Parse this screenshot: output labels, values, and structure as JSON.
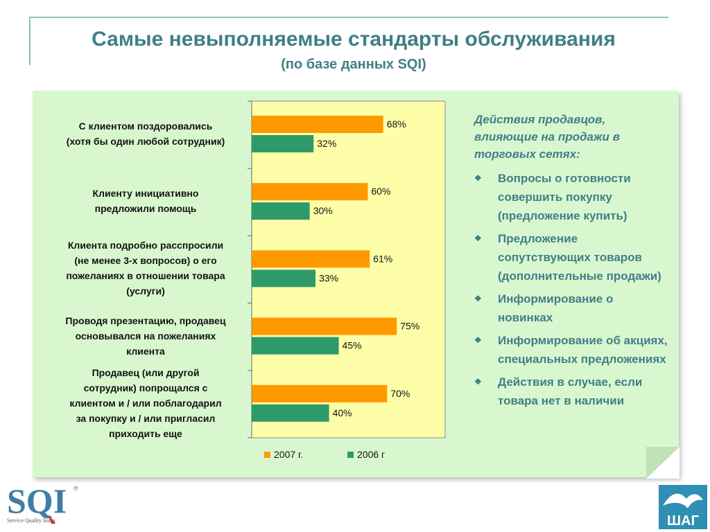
{
  "title": "Самые невыполняемые стандарты обслуживания",
  "subtitle": "(по базе данных SQI)",
  "chart_data": {
    "type": "bar",
    "orientation": "horizontal",
    "categories": [
      [
        "С клиентом поздоровались",
        "(хотя бы один любой сотрудник)"
      ],
      [
        "Клиенту инициативно",
        "предложили помощь"
      ],
      [
        "Клиента подробно расспросили",
        "(не менее 3-х вопросов) о его",
        "пожеланиях в отношении товара",
        "(услуги)"
      ],
      [
        "Проводя презентацию, продавец",
        "основывался на пожеланиях",
        "клиента"
      ],
      [
        "Продавец (или другой",
        "сотрудник) попрощался с",
        "клиентом и / или поблагодарил",
        "за покупку и / или пригласил",
        "приходить еще"
      ]
    ],
    "series": [
      {
        "name": "2007 г.",
        "color": "#ff9900",
        "values": [
          68,
          60,
          61,
          75,
          70
        ],
        "labels": [
          "68%",
          "60%",
          "61%",
          "75%",
          "70%"
        ]
      },
      {
        "name": "2006 г",
        "color": "#2e9a6a",
        "values": [
          32,
          30,
          33,
          45,
          40
        ],
        "labels": [
          "32%",
          "30%",
          "33%",
          "45%",
          "40%"
        ]
      }
    ],
    "xlim": [
      0,
      100
    ],
    "plot_background": "#fefea8",
    "legend_position": "bottom",
    "grid": false
  },
  "side": {
    "title": "Действия продавцов, влияющие на продажи в торговых сетях:",
    "bullet_icon": "diamond-cluster-icon",
    "items": [
      "Вопросы о готовности совершить покупку (предложение купить)",
      "Предложение сопутствующих товаров (дополнительные продажи)",
      "Информирование о новинках",
      "Информирование об акциях, специальных предложениях",
      "Действия в случае, если товара нет в наличии"
    ]
  },
  "logos": {
    "sqi": {
      "text": "SQI",
      "sub": "Service Quality Index",
      "reg": "®"
    },
    "shag": {
      "text": "ШАГ"
    }
  },
  "colors": {
    "accent": "#3f7f86",
    "panel": "#d9f7cf"
  }
}
